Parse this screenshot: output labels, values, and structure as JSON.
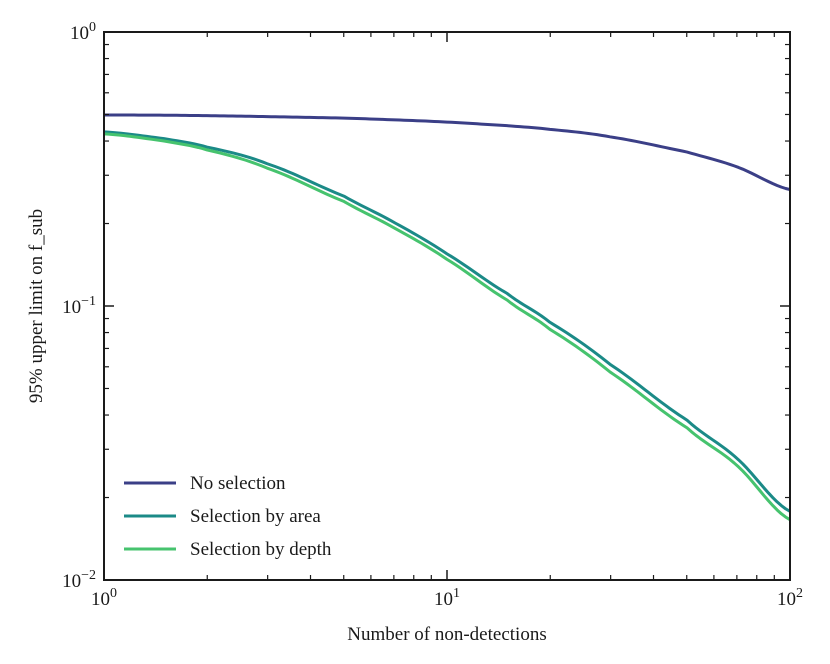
{
  "chart_data": {
    "type": "line",
    "xscale": "log",
    "yscale": "log",
    "xlim": [
      1,
      100
    ],
    "ylim": [
      0.01,
      1
    ],
    "xlabel": "Number of non-detections",
    "ylabel": "95% upper limit on f_sub",
    "grid": false,
    "legend_position": "lower-left",
    "x_ticks": [
      {
        "value": 1,
        "base": "10",
        "exp": "0"
      },
      {
        "value": 10,
        "base": "10",
        "exp": "1"
      },
      {
        "value": 100,
        "base": "10",
        "exp": "2"
      }
    ],
    "y_ticks": [
      {
        "value": 0.01,
        "base": "10",
        "exp": "−2"
      },
      {
        "value": 0.1,
        "base": "10",
        "exp": "−1"
      },
      {
        "value": 1,
        "base": "10",
        "exp": "0"
      }
    ],
    "x": [
      1,
      1.5,
      2,
      3,
      5,
      7,
      10,
      15,
      20,
      30,
      50,
      70,
      100
    ],
    "series": [
      {
        "name": "No selection",
        "color": "#3b3f87",
        "values": [
          0.498,
          0.497,
          0.495,
          0.491,
          0.485,
          0.478,
          0.469,
          0.455,
          0.441,
          0.414,
          0.365,
          0.322,
          0.266
        ]
      },
      {
        "name": "Selection by area",
        "color": "#1b8a87",
        "values": [
          0.432,
          0.408,
          0.38,
          0.33,
          0.252,
          0.202,
          0.155,
          0.111,
          0.087,
          0.061,
          0.0384,
          0.0278,
          0.0178
        ]
      },
      {
        "name": "Selection by depth",
        "color": "#46c36e",
        "values": [
          0.425,
          0.4,
          0.371,
          0.318,
          0.241,
          0.193,
          0.148,
          0.105,
          0.082,
          0.0572,
          0.036,
          0.0262,
          0.0166
        ]
      }
    ]
  }
}
